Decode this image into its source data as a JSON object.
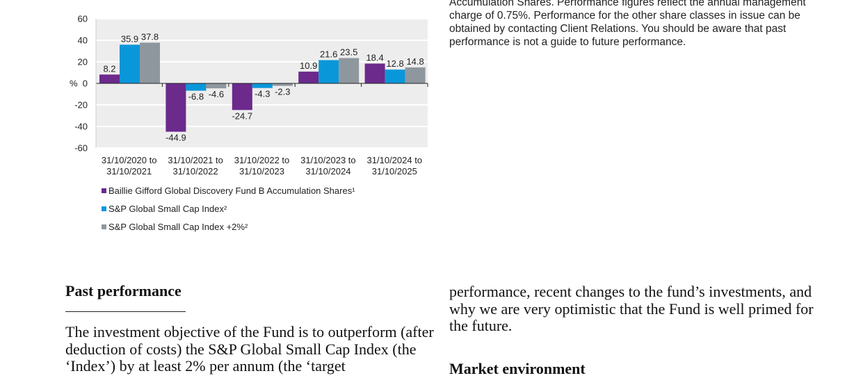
{
  "right_note": "Accumulation Shares. Performance figures reflect the annual management charge of 0.75%. Performance for the other share classes in issue can be obtained by contacting Client Relations. You should be aware that past performance is not a guide to future performance.",
  "left_section": {
    "heading": "Past performance",
    "text": "The investment objective of the Fund is to outperform (after deduction of costs) the S&P Global Small Cap Index (the ‘Index’) by at least 2% per annum (the ‘target"
  },
  "right_section": {
    "text": "performance, recent changes to the fund’s investments, and why we are very optimistic that the Fund is well primed for the future.",
    "next_heading": "Market environment"
  },
  "chart_data": {
    "type": "bar",
    "ylabel": "%",
    "ylim": [
      -60,
      60
    ],
    "yticks": [
      60,
      40,
      20,
      0,
      -20,
      -40,
      -60
    ],
    "grid": true,
    "legend_position": "bottom-left",
    "categories": [
      [
        "31/10/2020 to",
        "31/10/2021"
      ],
      [
        "31/10/2021 to",
        "31/10/2022"
      ],
      [
        "31/10/2022 to",
        "31/10/2023"
      ],
      [
        "31/10/2023 to",
        "31/10/2024"
      ],
      [
        "31/10/2024 to",
        "31/10/2025"
      ]
    ],
    "series": [
      {
        "name": "Baillie Gifford Global Discovery Fund B Accumulation Shares¹",
        "color": "#6b2a8c",
        "values": [
          8.2,
          -44.9,
          -24.7,
          10.9,
          18.4
        ]
      },
      {
        "name": "S&P Global Small Cap Index²",
        "color": "#0a97d9",
        "values": [
          35.9,
          -6.8,
          -4.3,
          21.6,
          12.8
        ]
      },
      {
        "name": "S&P Global Small Cap Index +2%²",
        "color": "#8f979e",
        "values": [
          37.8,
          -4.6,
          -2.3,
          23.5,
          14.8
        ]
      }
    ]
  }
}
